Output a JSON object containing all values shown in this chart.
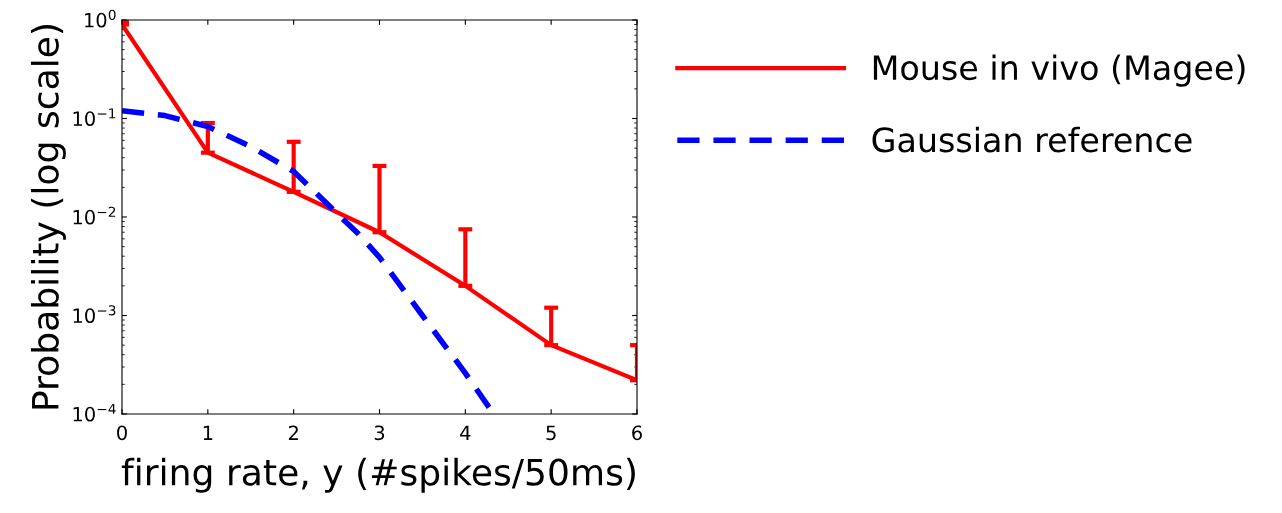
{
  "chart_data": {
    "type": "line",
    "xlabel": "firing rate, y (#spikes/50ms)",
    "ylabel": "Probability (log scale)",
    "log": "y",
    "xlim": [
      0,
      6
    ],
    "xticks": [
      0,
      1,
      2,
      3,
      4,
      5,
      6
    ],
    "ylim": [
      0.0001,
      1
    ],
    "yticks": [
      {
        "value": 0.0001,
        "label": "10$^{−4}$"
      },
      {
        "value": 0.001,
        "label": "10$^{−3}$"
      },
      {
        "value": 0.01,
        "label": "10$^{−2}$"
      },
      {
        "value": 0.1,
        "label": "10$^{−1}$"
      },
      {
        "value": 1,
        "label": "10$^{0}$"
      }
    ],
    "grid": false,
    "legend": "right",
    "marker": "none",
    "series": [
      {
        "name": "Mouse in vivo (Magee)",
        "color": "#ff0000",
        "line_style": "solid",
        "x": [
          0,
          1,
          2,
          3,
          4,
          5,
          6
        ],
        "values": [
          0.9,
          0.045,
          0.018,
          0.007,
          0.002,
          0.0005,
          0.00022
        ],
        "errors": [
          [
            0.9,
            0.95
          ],
          [
            0.045,
            0.09
          ],
          [
            0.018,
            0.058
          ],
          [
            0.007,
            0.033
          ],
          [
            0.002,
            0.0075
          ],
          [
            0.0005,
            0.0012
          ],
          [
            0.00022,
            0.0005
          ]
        ]
      },
      {
        "name": "Gaussian reference",
        "color": "#0000ff",
        "line_style": "dashed",
        "x": [
          0,
          0.5,
          1,
          1.5,
          2,
          2.5,
          2.75,
          3,
          3.5,
          4,
          4.33
        ],
        "values": [
          0.12,
          0.107,
          0.083,
          0.052,
          0.029,
          0.011,
          0.0068,
          0.0039,
          0.001,
          0.00026,
          0.0001
        ]
      }
    ]
  }
}
